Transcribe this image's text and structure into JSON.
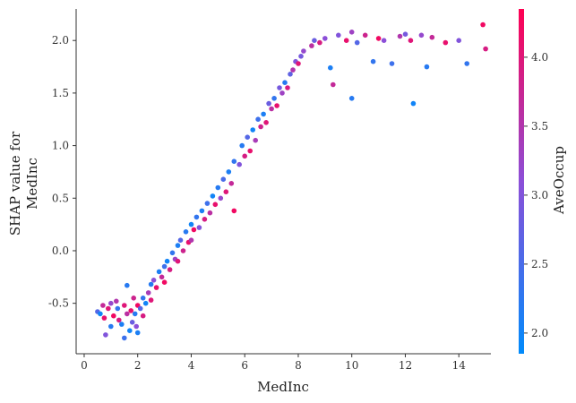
{
  "chart_data": {
    "type": "scatter",
    "title": "",
    "xlabel": "MedInc",
    "ylabel_lines": [
      "SHAP value for",
      "MedInc"
    ],
    "xlim": [
      -0.3,
      15.7
    ],
    "ylim": [
      -0.98,
      2.3
    ],
    "x_ticks": [
      0,
      2,
      4,
      6,
      8,
      10,
      12,
      14
    ],
    "y_ticks": [
      -0.5,
      0.0,
      0.5,
      1.0,
      1.5,
      2.0
    ],
    "x_tick_labels": [
      "0",
      "2",
      "4",
      "6",
      "8",
      "10",
      "12",
      "14"
    ],
    "y_tick_labels": [
      "-0.5",
      "0.0",
      "0.5",
      "1.0",
      "1.5",
      "2.0"
    ],
    "grid": false,
    "colorbar": {
      "label": "AveOccup",
      "range": [
        1.85,
        4.35
      ],
      "ticks": [
        2.0,
        2.5,
        3.0,
        3.5,
        4.0
      ],
      "tick_labels": [
        "2.0",
        "2.5",
        "3.0",
        "3.5",
        "4.0"
      ],
      "color_low": "#008bfb",
      "color_high": "#ff0052"
    },
    "series": [
      {
        "points": [
          [
            0.5,
            -0.58,
            2.6
          ],
          [
            0.6,
            -0.6,
            2.0
          ],
          [
            0.7,
            -0.52,
            3.7
          ],
          [
            0.75,
            -0.64,
            4.1
          ],
          [
            0.8,
            -0.8,
            3.0
          ],
          [
            0.9,
            -0.55,
            4.0
          ],
          [
            1.0,
            -0.5,
            3.2
          ],
          [
            1.0,
            -0.72,
            2.2
          ],
          [
            1.1,
            -0.62,
            4.2
          ],
          [
            1.2,
            -0.48,
            3.5
          ],
          [
            1.25,
            -0.55,
            2.3
          ],
          [
            1.3,
            -0.66,
            3.9
          ],
          [
            1.4,
            -0.7,
            2.1
          ],
          [
            1.5,
            -0.83,
            2.4
          ],
          [
            1.5,
            -0.52,
            4.0
          ],
          [
            1.6,
            -0.6,
            3.6
          ],
          [
            1.6,
            -0.33,
            2.2
          ],
          [
            1.7,
            -0.76,
            2.0
          ],
          [
            1.75,
            -0.57,
            4.1
          ],
          [
            1.8,
            -0.68,
            2.8
          ],
          [
            1.85,
            -0.45,
            3.8
          ],
          [
            1.9,
            -0.6,
            2.2
          ],
          [
            1.95,
            -0.72,
            3.1
          ],
          [
            2.0,
            -0.52,
            4.2
          ],
          [
            2.0,
            -0.78,
            2.1
          ],
          [
            2.1,
            -0.55,
            2.6
          ],
          [
            2.2,
            -0.62,
            3.9
          ],
          [
            2.2,
            -0.45,
            2.3
          ],
          [
            2.3,
            -0.5,
            2.0
          ],
          [
            2.4,
            -0.4,
            3.4
          ],
          [
            2.5,
            -0.47,
            4.0
          ],
          [
            2.5,
            -0.32,
            2.2
          ],
          [
            2.6,
            -0.28,
            3.1
          ],
          [
            2.7,
            -0.35,
            4.1
          ],
          [
            2.8,
            -0.2,
            2.1
          ],
          [
            2.9,
            -0.25,
            3.7
          ],
          [
            3.0,
            -0.15,
            2.4
          ],
          [
            3.0,
            -0.3,
            4.2
          ],
          [
            3.1,
            -0.1,
            2.0
          ],
          [
            3.2,
            -0.18,
            3.9
          ],
          [
            3.3,
            -0.02,
            2.3
          ],
          [
            3.4,
            -0.08,
            3.3
          ],
          [
            3.5,
            0.05,
            2.1
          ],
          [
            3.5,
            -0.1,
            4.0
          ],
          [
            3.6,
            0.1,
            2.6
          ],
          [
            3.7,
            0.0,
            3.8
          ],
          [
            3.8,
            0.18,
            2.2
          ],
          [
            3.9,
            0.08,
            4.1
          ],
          [
            4.0,
            0.25,
            2.0
          ],
          [
            4.0,
            0.1,
            3.5
          ],
          [
            4.1,
            0.2,
            4.2
          ],
          [
            4.2,
            0.32,
            2.3
          ],
          [
            4.3,
            0.22,
            3.0
          ],
          [
            4.4,
            0.38,
            2.1
          ],
          [
            4.5,
            0.3,
            3.9
          ],
          [
            4.6,
            0.45,
            2.4
          ],
          [
            4.7,
            0.36,
            3.6
          ],
          [
            4.8,
            0.52,
            2.0
          ],
          [
            4.9,
            0.44,
            4.1
          ],
          [
            5.0,
            0.6,
            2.2
          ],
          [
            5.1,
            0.5,
            3.2
          ],
          [
            5.2,
            0.68,
            2.5
          ],
          [
            5.3,
            0.56,
            4.0
          ],
          [
            5.4,
            0.75,
            2.1
          ],
          [
            5.5,
            0.64,
            3.7
          ],
          [
            5.6,
            0.85,
            2.3
          ],
          [
            5.6,
            0.38,
            4.2
          ],
          [
            5.8,
            0.82,
            3.0
          ],
          [
            5.9,
            1.0,
            2.2
          ],
          [
            6.0,
            0.9,
            3.9
          ],
          [
            6.1,
            1.08,
            2.6
          ],
          [
            6.2,
            0.95,
            4.1
          ],
          [
            6.3,
            1.15,
            2.0
          ],
          [
            6.4,
            1.05,
            3.4
          ],
          [
            6.5,
            1.25,
            2.4
          ],
          [
            6.6,
            1.18,
            3.8
          ],
          [
            6.7,
            1.3,
            2.1
          ],
          [
            6.8,
            1.22,
            4.0
          ],
          [
            6.9,
            1.4,
            2.8
          ],
          [
            7.0,
            1.35,
            3.6
          ],
          [
            7.1,
            1.45,
            2.3
          ],
          [
            7.2,
            1.38,
            4.1
          ],
          [
            7.3,
            1.55,
            2.9
          ],
          [
            7.4,
            1.5,
            3.3
          ],
          [
            7.5,
            1.6,
            2.2
          ],
          [
            7.6,
            1.55,
            3.9
          ],
          [
            7.7,
            1.68,
            2.7
          ],
          [
            7.8,
            1.72,
            3.5
          ],
          [
            7.9,
            1.8,
            3.0
          ],
          [
            8.0,
            1.78,
            4.0
          ],
          [
            8.1,
            1.85,
            2.9
          ],
          [
            8.2,
            1.9,
            3.2
          ],
          [
            8.5,
            1.95,
            3.6
          ],
          [
            8.6,
            2.0,
            2.8
          ],
          [
            8.8,
            1.98,
            3.9
          ],
          [
            9.0,
            2.02,
            3.1
          ],
          [
            9.2,
            1.74,
            2.1
          ],
          [
            9.3,
            1.58,
            3.7
          ],
          [
            9.5,
            2.05,
            3.0
          ],
          [
            9.8,
            2.0,
            4.1
          ],
          [
            10.0,
            1.45,
            2.2
          ],
          [
            10.0,
            2.08,
            3.3
          ],
          [
            10.2,
            1.98,
            2.6
          ],
          [
            10.5,
            2.05,
            3.8
          ],
          [
            10.8,
            1.8,
            2.3
          ],
          [
            11.0,
            2.02,
            4.2
          ],
          [
            11.2,
            2.0,
            3.1
          ],
          [
            11.5,
            1.78,
            2.4
          ],
          [
            11.8,
            2.04,
            3.5
          ],
          [
            12.0,
            2.06,
            2.9
          ],
          [
            12.2,
            2.0,
            4.0
          ],
          [
            12.3,
            1.4,
            2.0
          ],
          [
            12.6,
            2.05,
            3.2
          ],
          [
            12.8,
            1.75,
            2.2
          ],
          [
            13.0,
            2.03,
            3.7
          ],
          [
            13.5,
            1.98,
            4.1
          ],
          [
            14.0,
            2.0,
            3.0
          ],
          [
            14.3,
            1.78,
            2.3
          ],
          [
            14.9,
            2.15,
            4.2
          ],
          [
            15.0,
            1.92,
            3.9
          ]
        ]
      }
    ]
  }
}
